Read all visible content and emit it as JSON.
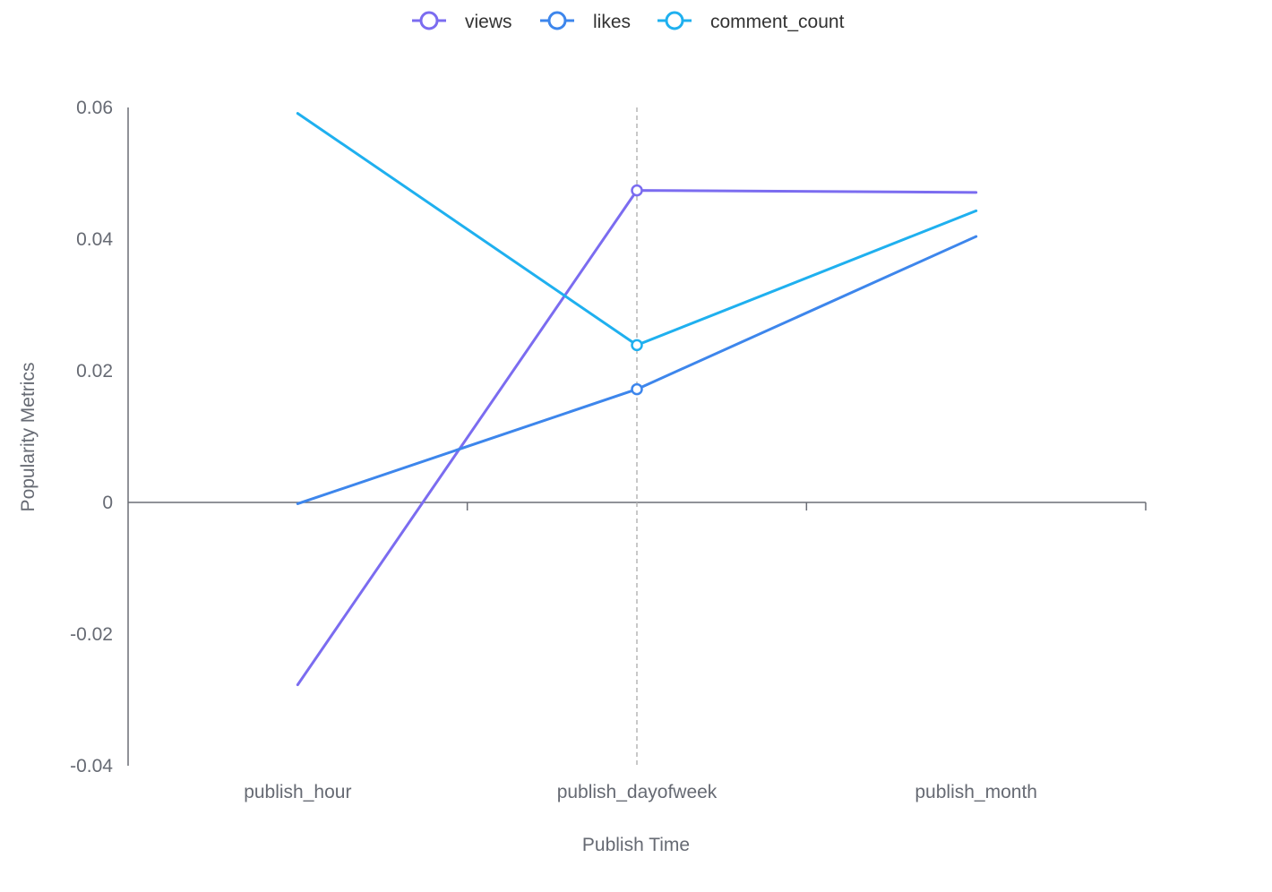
{
  "chart_data": {
    "type": "line",
    "categories": [
      "publish_hour",
      "publish_dayofweek",
      "publish_month"
    ],
    "series": [
      {
        "name": "views",
        "values": [
          -0.0277,
          0.0474,
          0.0471
        ],
        "color": "#7b6cf0"
      },
      {
        "name": "likes",
        "values": [
          -0.0002,
          0.0172,
          0.0404
        ],
        "color": "#3d86ec"
      },
      {
        "name": "comment_count",
        "values": [
          0.0591,
          0.0239,
          0.0443
        ],
        "color": "#1fb0ef"
      }
    ],
    "xlabel": "Publish Time",
    "ylabel": "Popularity Metrics",
    "ylim": [
      -0.04,
      0.06
    ],
    "yticks": [
      -0.04,
      -0.02,
      0,
      0.02,
      0.04,
      0.06
    ],
    "ytick_labels": [
      "-0.04",
      "-0.02",
      "0",
      "0.02",
      "0.04",
      "0.06"
    ],
    "legend_position": "top-center",
    "grid": false,
    "highlighted_category": "publish_dayofweek"
  }
}
